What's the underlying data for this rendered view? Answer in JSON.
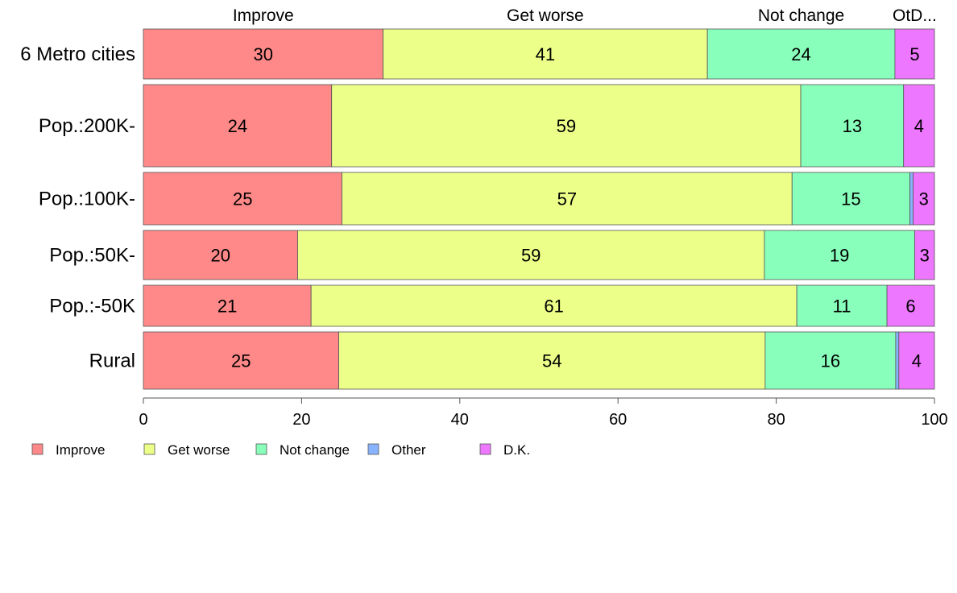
{
  "chart_data": {
    "type": "bar",
    "orientation": "horizontal",
    "stacked": true,
    "variable_width": true,
    "column_headers": [
      "Improve",
      "Get worse",
      "Not change",
      "OtD..."
    ],
    "categories": [
      "6 Metro cities",
      "Pop.:200K-",
      "Pop.:100K-",
      "Pop.:50K-",
      "Pop.:-50K",
      "Rural"
    ],
    "relative_bar_heights": [
      62,
      102,
      65,
      61,
      51,
      71
    ],
    "series": [
      {
        "name": "Improve",
        "values": [
          30.3,
          23.8,
          25.1,
          19.5,
          21.2,
          24.7
        ],
        "labels": [
          "30",
          "24",
          "25",
          "20",
          "21",
          "25"
        ]
      },
      {
        "name": "Get worse",
        "values": [
          41.0,
          59.3,
          56.9,
          59.0,
          61.4,
          53.9
        ],
        "labels": [
          "41",
          "59",
          "57",
          "59",
          "61",
          "54"
        ]
      },
      {
        "name": "Not change",
        "values": [
          23.7,
          13.0,
          14.9,
          19.0,
          11.4,
          16.5
        ],
        "labels": [
          "24",
          "13",
          "15",
          "19",
          "11",
          "16"
        ]
      },
      {
        "name": "Other",
        "values": [
          0.0,
          0.0,
          0.4,
          0.0,
          0.0,
          0.4
        ],
        "labels": [
          "",
          "",
          "",
          "",
          "",
          ""
        ]
      },
      {
        "name": "D.K.",
        "values": [
          5.0,
          3.9,
          2.7,
          2.5,
          6.0,
          4.5
        ],
        "labels": [
          "5",
          "4",
          "3",
          "3",
          "6",
          "4"
        ]
      }
    ],
    "colors": [
      "#ff8888",
      "#ecff88",
      "#88ffbb",
      "#88b3ff",
      "#ee77ff"
    ],
    "xlim": [
      0,
      100
    ],
    "xticks": [
      0,
      20,
      40,
      60,
      80,
      100
    ],
    "legend": {
      "placement": "bottom-left",
      "entries": [
        "Improve",
        "Get worse",
        "Not change",
        "Other",
        "D.K."
      ]
    },
    "grid": false
  }
}
